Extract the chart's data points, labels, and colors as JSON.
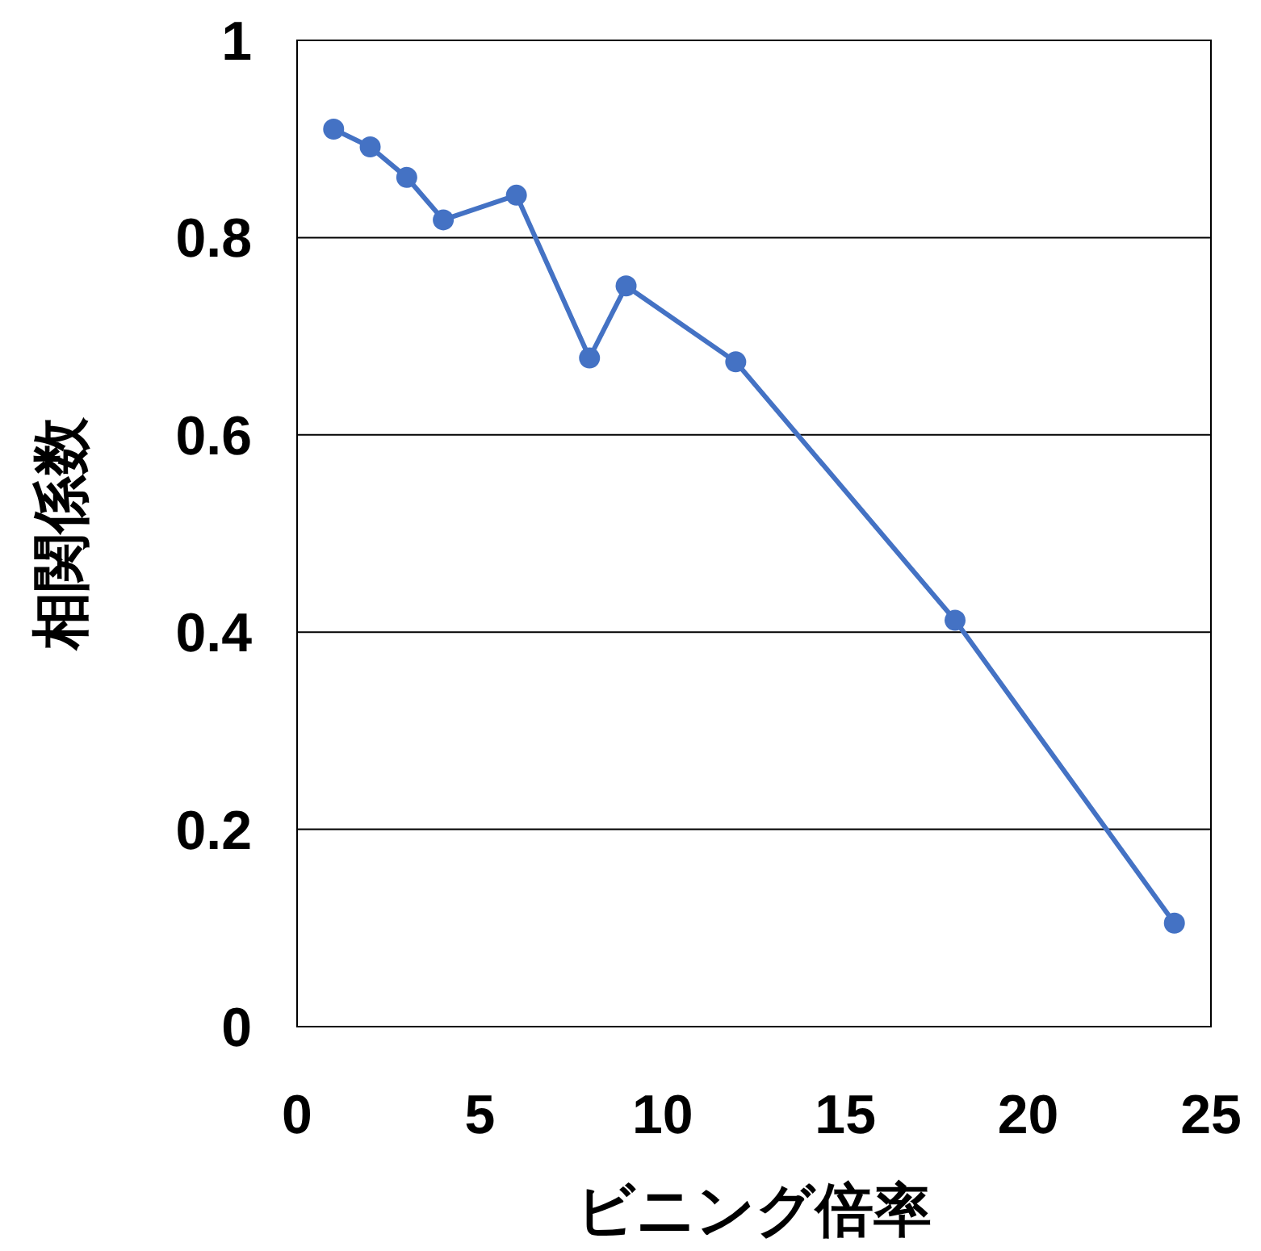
{
  "chart_data": {
    "type": "line",
    "xlabel": "ビニング倍率",
    "ylabel": "相関係数",
    "x": [
      1,
      2,
      3,
      4,
      6,
      8,
      9,
      12,
      18,
      24
    ],
    "series": [
      {
        "color": "#4472c4",
        "values": [
          0.91,
          0.892,
          0.861,
          0.818,
          0.843,
          0.678,
          0.751,
          0.674,
          0.412,
          0.105
        ]
      }
    ],
    "xlim": [
      0,
      25
    ],
    "ylim": [
      0,
      1
    ],
    "xticks": [
      0,
      5,
      10,
      15,
      20,
      25
    ],
    "yticks": [
      0,
      0.2,
      0.4,
      0.6,
      0.8,
      1
    ],
    "grid": "y",
    "marker": "circle",
    "line_style": "solid"
  }
}
